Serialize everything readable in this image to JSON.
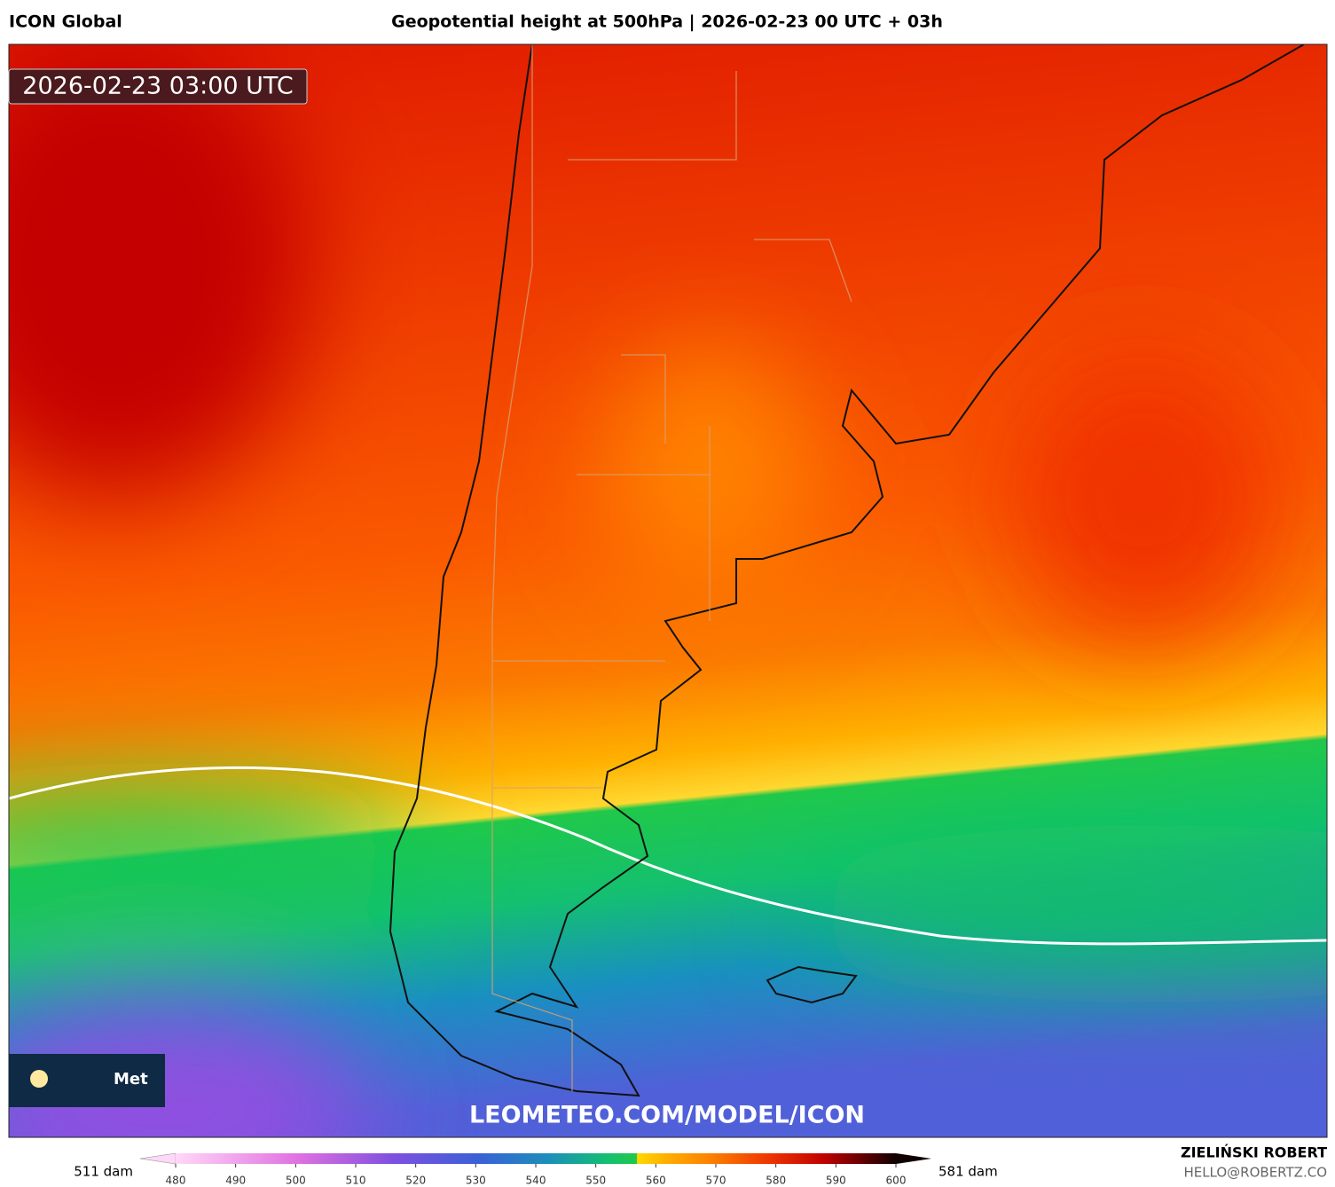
{
  "header": {
    "model": "ICON Global",
    "title": "Geopotential height at 500hPa | 2026-02-23 00 UTC + 03h"
  },
  "map": {
    "timestamp": "2026-02-23 03:00 UTC",
    "watermark": "LEOMETEO.COM/MODEL/ICON",
    "logo_text": "Met"
  },
  "colorbar": {
    "min_label": "511 dam",
    "max_label": "581 dam",
    "range": [
      480,
      600
    ],
    "ticks": [
      480,
      490,
      500,
      510,
      520,
      530,
      540,
      550,
      560,
      570,
      580,
      590,
      600
    ]
  },
  "credits": {
    "author": "ZIELIŃSKI ROBERT",
    "email": "HELLO@ROBERTZ.CO"
  }
}
